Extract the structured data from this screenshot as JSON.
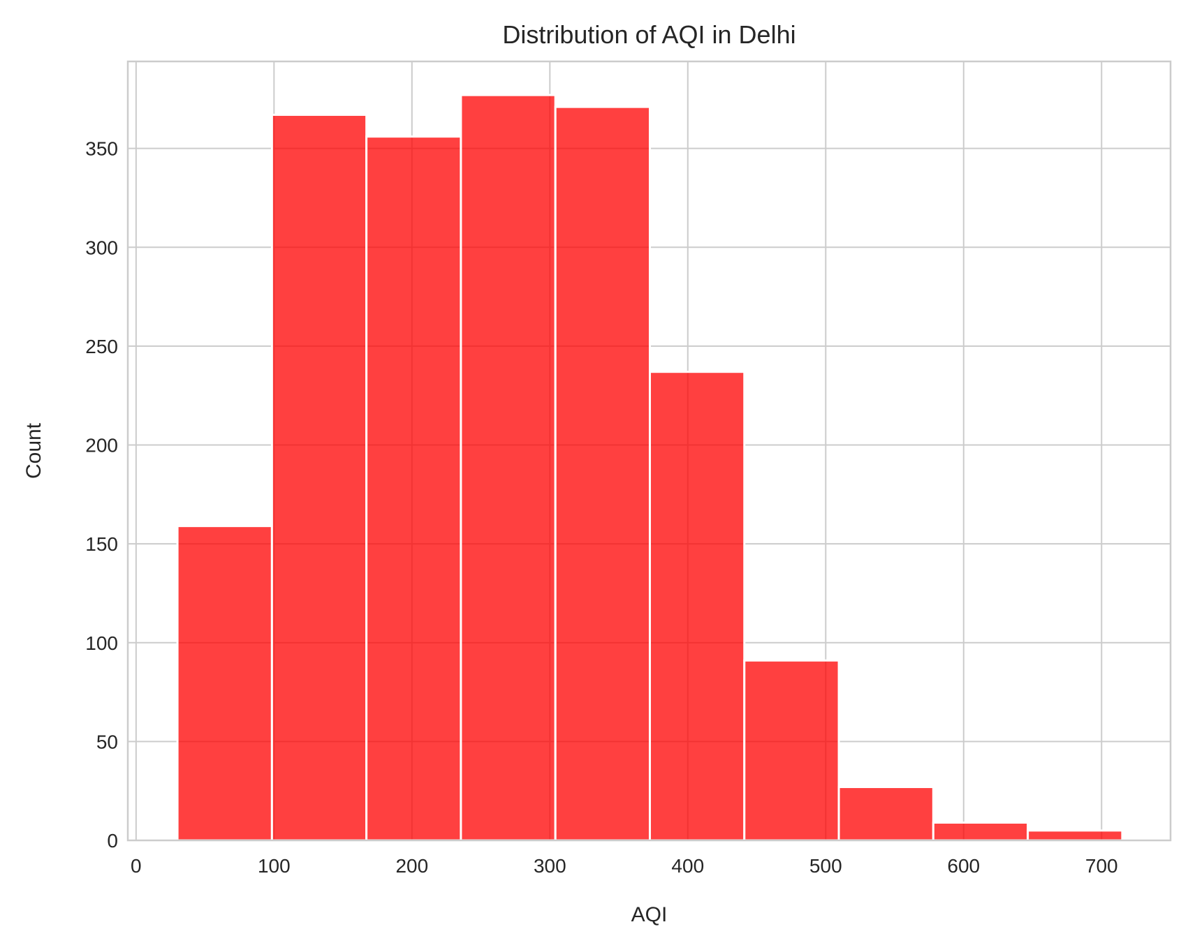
{
  "chart_data": {
    "type": "bar",
    "title": "Distribution of AQI in Delhi",
    "xlabel": "AQI",
    "ylabel": "Count",
    "xlim": [
      -6,
      750
    ],
    "ylim": [
      0,
      394
    ],
    "xticks": [
      0,
      100,
      200,
      300,
      400,
      500,
      600,
      700
    ],
    "yticks": [
      0,
      50,
      100,
      150,
      200,
      250,
      300,
      350
    ],
    "grid": true,
    "bins": [
      {
        "x0": 30,
        "x1": 98.5,
        "count": 159
      },
      {
        "x0": 98.5,
        "x1": 167,
        "count": 367
      },
      {
        "x0": 167,
        "x1": 235.5,
        "count": 356
      },
      {
        "x0": 235.5,
        "x1": 304,
        "count": 377
      },
      {
        "x0": 304,
        "x1": 372.5,
        "count": 371
      },
      {
        "x0": 372.5,
        "x1": 441,
        "count": 237
      },
      {
        "x0": 441,
        "x1": 509.5,
        "count": 91
      },
      {
        "x0": 509.5,
        "x1": 578,
        "count": 27
      },
      {
        "x0": 578,
        "x1": 646.5,
        "count": 9
      },
      {
        "x0": 646.5,
        "x1": 715,
        "count": 5
      }
    ],
    "colors": {
      "bar": "#ff0000",
      "bar_opacity": 0.75,
      "grid": "#cccccc",
      "text": "#262626"
    }
  }
}
